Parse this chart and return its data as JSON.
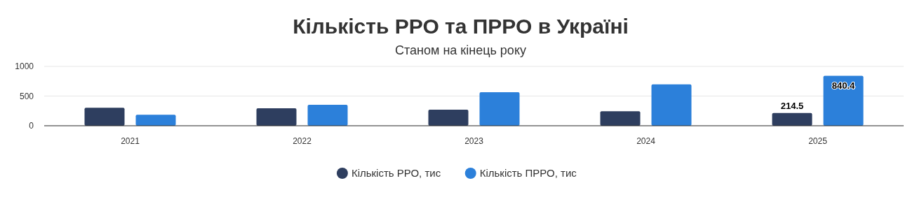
{
  "chart_data": {
    "type": "bar",
    "title": "Кількість РРО та ПРРО в Україні",
    "subtitle": "Станом на кінець року",
    "categories": [
      "2021",
      "2022",
      "2023",
      "2024",
      "2025"
    ],
    "series": [
      {
        "name": "Кількість РРО, тис",
        "color": "#2e3e5f",
        "values": [
          304,
          294,
          270,
          245,
          214.5
        ],
        "value_labels": [
          null,
          null,
          null,
          null,
          "214.5"
        ]
      },
      {
        "name": "Кількість ПРРО, тис",
        "color": "#2c80da",
        "values": [
          186,
          353,
          564,
          696,
          840.4
        ],
        "value_labels": [
          null,
          null,
          null,
          null,
          "840.4"
        ]
      }
    ],
    "ylim": [
      0,
      1000
    ],
    "yticks": [
      0,
      500,
      1000
    ],
    "grid": "y",
    "legend": "bottom"
  }
}
